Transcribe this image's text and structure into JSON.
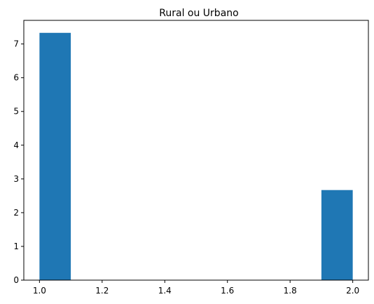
{
  "chart_data": {
    "type": "bar",
    "title": "Rural ou Urbano",
    "xlabel": "",
    "ylabel": "",
    "xlim": [
      0.95,
      2.05
    ],
    "ylim": [
      0,
      7.7
    ],
    "xticks": [
      "1.0",
      "1.2",
      "1.4",
      "1.6",
      "1.8",
      "2.0"
    ],
    "yticks": [
      "0",
      "1",
      "2",
      "3",
      "4",
      "5",
      "6",
      "7"
    ],
    "bins": [
      {
        "start": 1.0,
        "end": 1.1,
        "value": 7.33
      },
      {
        "start": 1.1,
        "end": 1.2,
        "value": 0
      },
      {
        "start": 1.2,
        "end": 1.3,
        "value": 0
      },
      {
        "start": 1.3,
        "end": 1.4,
        "value": 0
      },
      {
        "start": 1.4,
        "end": 1.5,
        "value": 0
      },
      {
        "start": 1.5,
        "end": 1.6,
        "value": 0
      },
      {
        "start": 1.6,
        "end": 1.7,
        "value": 0
      },
      {
        "start": 1.7,
        "end": 1.8,
        "value": 0
      },
      {
        "start": 1.8,
        "end": 1.9,
        "value": 0
      },
      {
        "start": 1.9,
        "end": 2.0,
        "value": 2.67
      }
    ],
    "grid": false,
    "bar_color": "#1f77b4"
  }
}
